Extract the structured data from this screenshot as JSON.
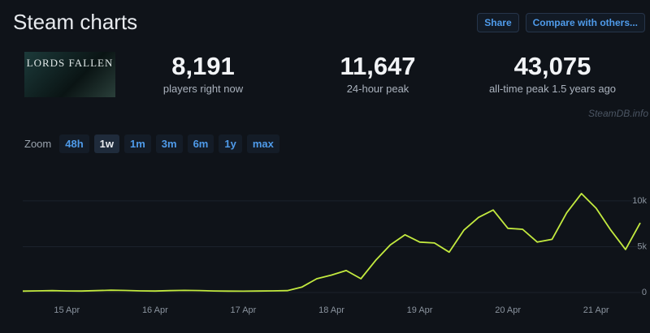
{
  "header": {
    "title": "Steam charts",
    "buttons": [
      "Share",
      "Compare with others..."
    ]
  },
  "game": {
    "image_label": "LORDS FALLEN"
  },
  "stats": [
    {
      "value": "8,191",
      "label": "players right now"
    },
    {
      "value": "11,647",
      "label": "24-hour peak"
    },
    {
      "value": "43,075",
      "label": "all-time peak 1.5 years ago"
    }
  ],
  "watermark": "SteamDB.info",
  "zoom": {
    "label": "Zoom",
    "options": [
      "48h",
      "1w",
      "1m",
      "3m",
      "6m",
      "1y",
      "max"
    ],
    "active": "1w"
  },
  "chart_data": {
    "type": "line",
    "categories": [
      null,
      null,
      null,
      "15 Apr",
      null,
      null,
      null,
      null,
      null,
      "16 Apr",
      null,
      null,
      null,
      null,
      null,
      "17 Apr",
      null,
      null,
      null,
      null,
      null,
      "18 Apr",
      null,
      null,
      null,
      null,
      null,
      "19 Apr",
      null,
      null,
      null,
      null,
      null,
      "20 Apr",
      null,
      null,
      null,
      null,
      null,
      "21 Apr",
      null,
      null,
      null
    ],
    "series": [
      {
        "name": "Players",
        "color": "#c3ea3f",
        "values": [
          150,
          180,
          200,
          170,
          160,
          200,
          250,
          220,
          180,
          160,
          200,
          230,
          210,
          170,
          150,
          140,
          160,
          180,
          200,
          600,
          1500,
          1900,
          2400,
          1500,
          3500,
          5200,
          6300,
          5500,
          5400,
          4400,
          6800,
          8200,
          9000,
          7000,
          6900,
          5500,
          5800,
          8700,
          10800,
          9200,
          6800,
          4700,
          7600
        ]
      }
    ],
    "ylim": [
      0,
      13000
    ],
    "yticks": [
      0,
      {
        "value": 5000,
        "label": "5k"
      },
      {
        "value": 10000,
        "label": "10k"
      }
    ],
    "grid": true
  }
}
